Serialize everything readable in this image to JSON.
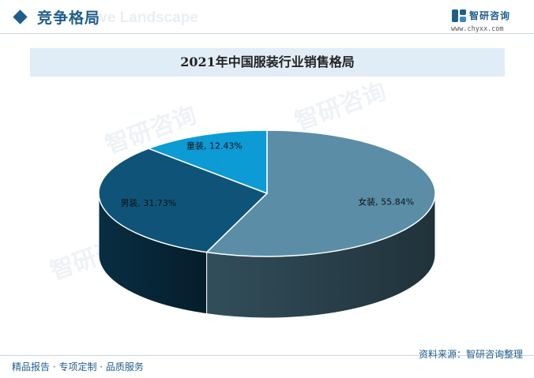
{
  "header": {
    "title": "竞争格局",
    "watermark_text": "ive Landscape"
  },
  "logo": {
    "name": "智研咨询",
    "url": "www.chyxx.com"
  },
  "watermark": {
    "text": "智研咨询"
  },
  "footer": {
    "left": "精品报告 · 专项定制 · 品质服务",
    "source": "资料来源：智研咨询整理"
  },
  "chart_data": {
    "type": "pie",
    "title": "2021年中国服装行业销售格局",
    "slices": [
      {
        "name": "女装",
        "value": 55.84,
        "label": "女装, 55.84%",
        "color": "#5b8ea6"
      },
      {
        "name": "男装",
        "value": 31.73,
        "label": "男装, 31.73%",
        "color": "#0f5478"
      },
      {
        "name": "童装",
        "value": 12.43,
        "label": "童装, 12.43%",
        "color": "#0d9bd6"
      }
    ],
    "style": "3d"
  }
}
